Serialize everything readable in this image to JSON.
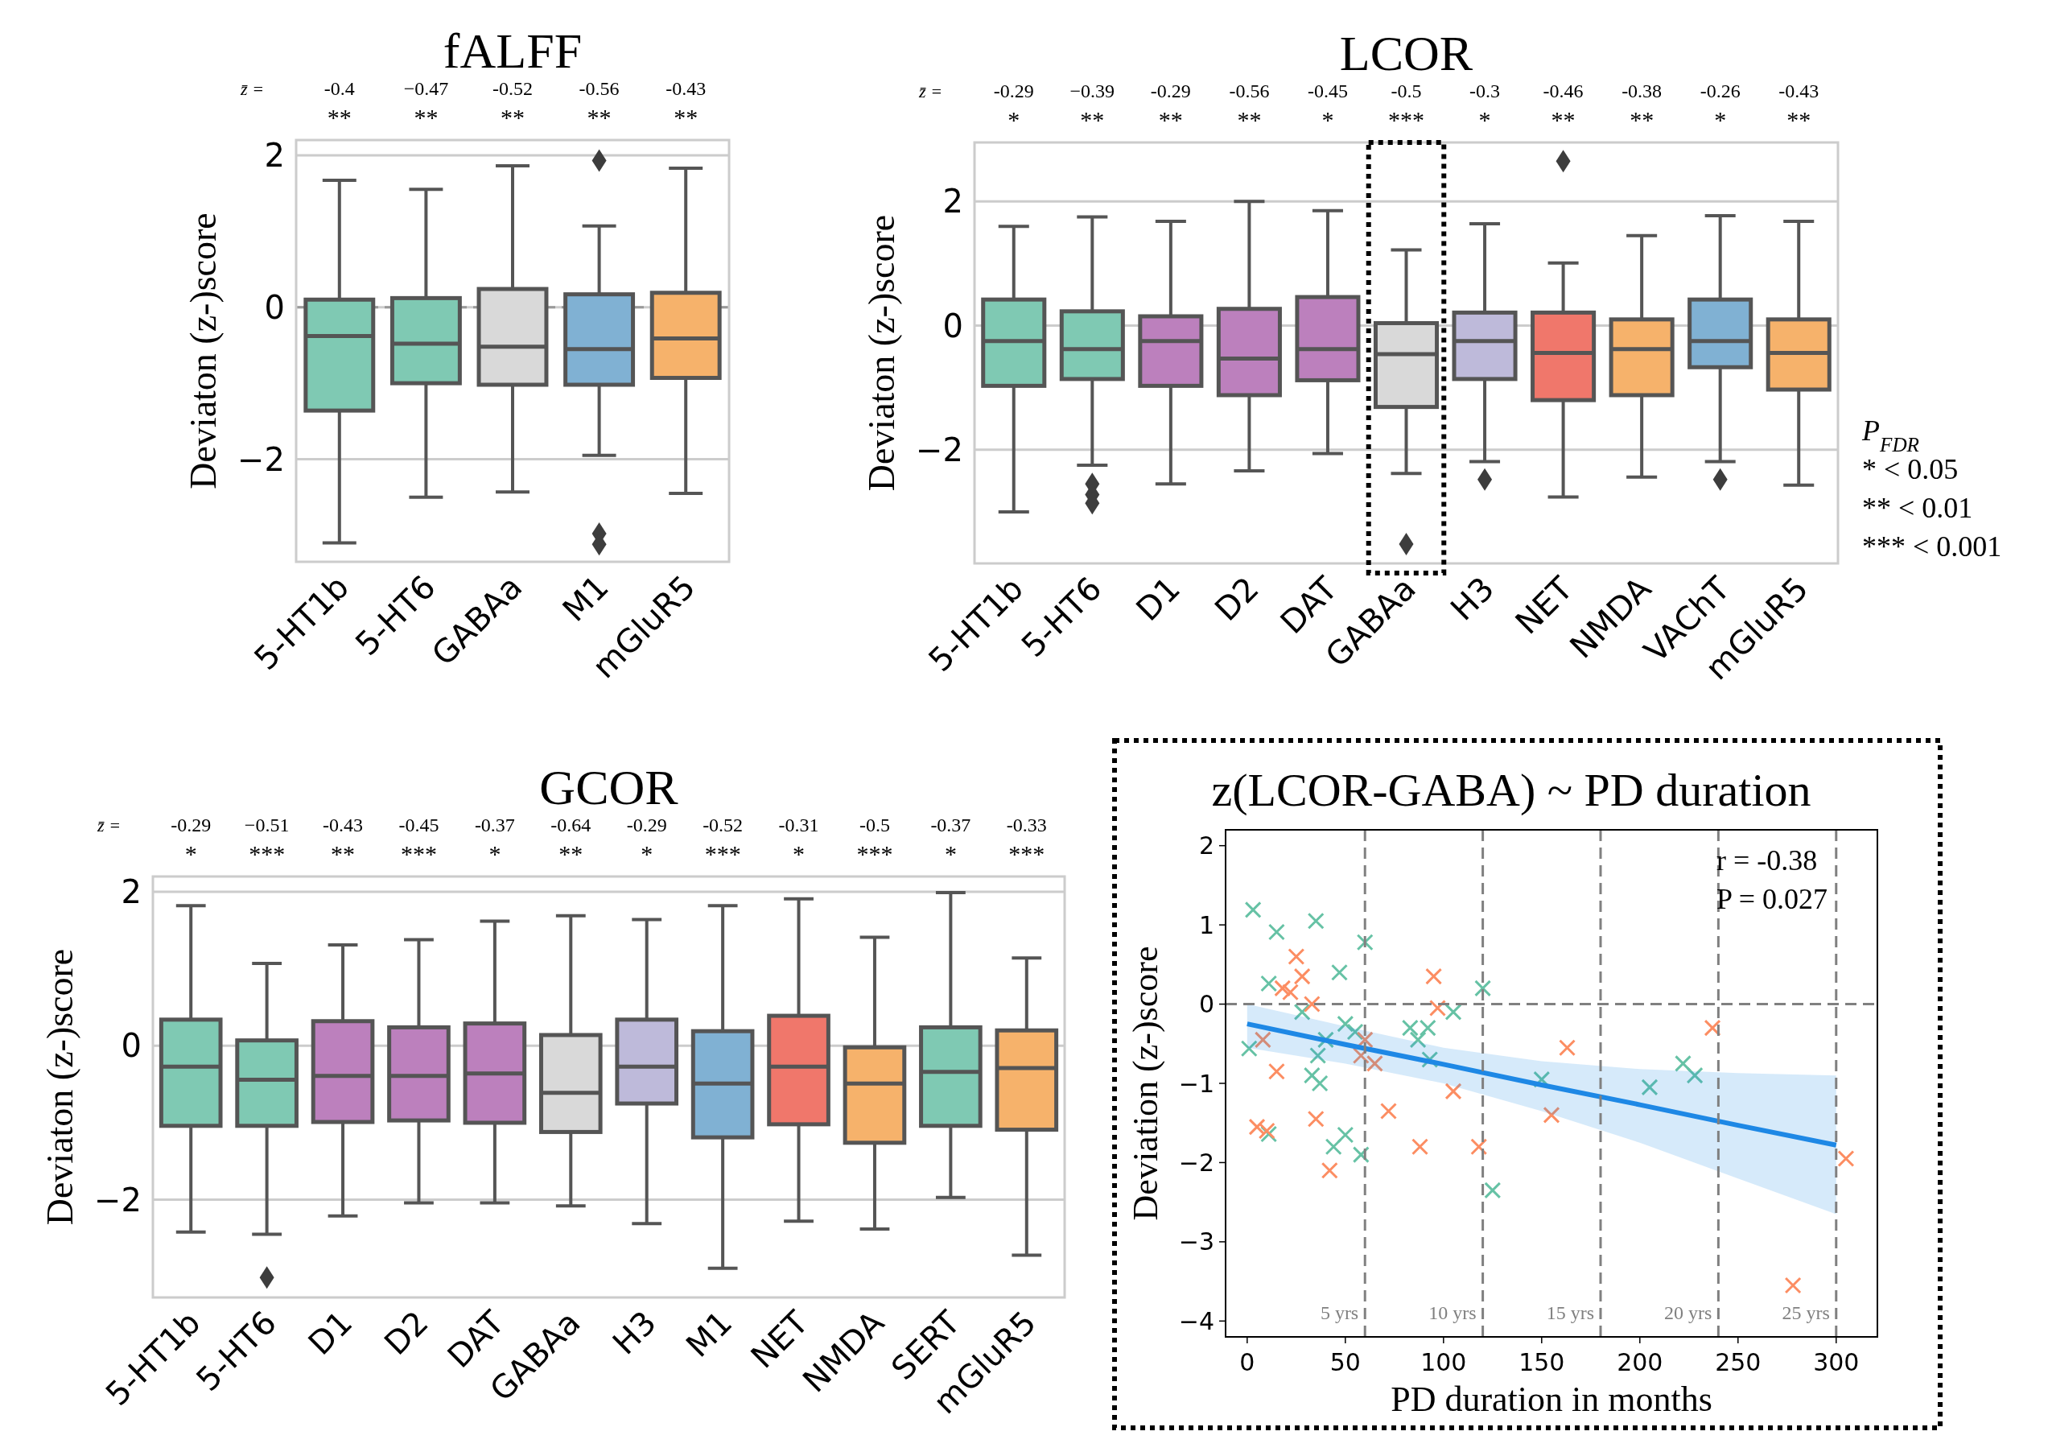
{
  "chart_data": [
    {
      "type": "box",
      "title": "fALFF",
      "ylabel": "Deviaton (z-)score",
      "categories": [
        "5-HT1b",
        "5-HT6",
        "GABAa",
        "M1",
        "mGluR5"
      ],
      "colors": [
        "#7fc9b3",
        "#7fc9b3",
        "#d9d9d9",
        "#80b1d3",
        "#f6b26b"
      ],
      "boxes": [
        {
          "low": -3.1,
          "q1": -1.36,
          "median": -0.38,
          "q3": 0.1,
          "high": 1.67
        },
        {
          "low": -2.5,
          "q1": -1.0,
          "median": -0.48,
          "q3": 0.12,
          "high": 1.55
        },
        {
          "low": -2.43,
          "q1": -1.02,
          "median": -0.52,
          "q3": 0.24,
          "high": 1.86
        },
        {
          "low": -1.95,
          "q1": -1.02,
          "median": -0.55,
          "q3": 0.17,
          "high": 1.07,
          "outliers": [
            1.93,
            -2.98,
            -3.12
          ]
        },
        {
          "low": -2.45,
          "q1": -0.93,
          "median": -0.41,
          "q3": 0.19,
          "high": 1.83
        }
      ],
      "ylim": [
        -3.35,
        2.2
      ],
      "yticks": [
        {
          "value": -2,
          "label": "−2"
        },
        0,
        2
      ],
      "grid": "y",
      "ref_lines": [
        {
          "axis": "y",
          "value": 0,
          "line_style": "dashed",
          "color": "#999999"
        }
      ],
      "annotations": [
        "z̄ =",
        "-0.4",
        "**",
        "−0.47",
        "**",
        "-0.52",
        "**",
        "-0.56",
        "**",
        "-0.43",
        "**"
      ]
    },
    {
      "type": "box",
      "title": "LCOR",
      "ylabel": "Deviaton (z-)score",
      "categories": [
        "5-HT1b",
        "5-HT6",
        "D1",
        "D2",
        "DAT",
        "GABAa",
        "H3",
        "NET",
        "NMDA",
        "VAChT",
        "mGluR5"
      ],
      "colors": [
        "#7fc9b3",
        "#7fc9b3",
        "#bc80bd",
        "#bc80bd",
        "#bc80bd",
        "#d9d9d9",
        "#bebada",
        "#f0776b",
        "#f6b26b",
        "#80b1d3",
        "#f6b26b"
      ],
      "boxes": [
        {
          "low": -3.0,
          "q1": -0.97,
          "median": -0.25,
          "q3": 0.42,
          "high": 1.6
        },
        {
          "low": -2.25,
          "q1": -0.86,
          "median": -0.38,
          "q3": 0.23,
          "high": 1.75,
          "outliers": [
            -2.55,
            -2.72,
            -2.86
          ]
        },
        {
          "low": -2.55,
          "q1": -0.97,
          "median": -0.25,
          "q3": 0.15,
          "high": 1.68
        },
        {
          "low": -2.34,
          "q1": -1.12,
          "median": -0.53,
          "q3": 0.27,
          "high": 2.0
        },
        {
          "low": -2.06,
          "q1": -0.88,
          "median": -0.38,
          "q3": 0.46,
          "high": 1.85
        },
        {
          "low": -2.38,
          "q1": -1.31,
          "median": -0.46,
          "q3": 0.04,
          "high": 1.22,
          "outliers": [
            -3.52
          ]
        },
        {
          "low": -2.19,
          "q1": -0.86,
          "median": -0.25,
          "q3": 0.21,
          "high": 1.64,
          "outliers": [
            -2.48
          ]
        },
        {
          "low": -2.76,
          "q1": -1.2,
          "median": -0.44,
          "q3": 0.21,
          "high": 1.01,
          "outliers": [
            2.65
          ]
        },
        {
          "low": -2.44,
          "q1": -1.12,
          "median": -0.38,
          "q3": 0.1,
          "high": 1.45
        },
        {
          "low": -2.19,
          "q1": -0.67,
          "median": -0.25,
          "q3": 0.42,
          "high": 1.77,
          "outliers": [
            -2.48
          ]
        },
        {
          "low": -2.57,
          "q1": -1.03,
          "median": -0.44,
          "q3": 0.1,
          "high": 1.68
        }
      ],
      "ylim": [
        -3.83,
        2.95
      ],
      "yticks": [
        {
          "value": -2,
          "label": "−2"
        },
        0,
        2
      ],
      "grid": "y",
      "annotations": [
        "z̄ =",
        "-0.29",
        "*",
        "−0.39",
        "**",
        "-0.29",
        "**",
        "-0.56",
        "**",
        "-0.45",
        "*",
        "-0.5",
        "***",
        "-0.3",
        "*",
        "-0.46",
        "**",
        "-0.38",
        "**",
        "-0.26",
        "*",
        "-0.43",
        "**",
        "P$_{FDR}$",
        "* < 0.05",
        "** < 0.01",
        "*** < 0.001"
      ]
    },
    {
      "type": "box",
      "title": "GCOR",
      "ylabel": "Deviaton (z-)score",
      "categories": [
        "5-HT1b",
        "5-HT6",
        "D1",
        "D2",
        "DAT",
        "GABAa",
        "H3",
        "M1",
        "NET",
        "NMDA",
        "SERT",
        "mGluR5"
      ],
      "colors": [
        "#7fc9b3",
        "#7fc9b3",
        "#bc80bd",
        "#bc80bd",
        "#bc80bd",
        "#d9d9d9",
        "#bebada",
        "#80b1d3",
        "#f0776b",
        "#f6b26b",
        "#7fc9b3",
        "#f6b26b"
      ],
      "boxes": [
        {
          "low": -2.42,
          "q1": -1.04,
          "median": -0.27,
          "q3": 0.34,
          "high": 1.82
        },
        {
          "low": -2.45,
          "q1": -1.04,
          "median": -0.44,
          "q3": 0.07,
          "high": 1.07,
          "outliers": [
            -3.01
          ]
        },
        {
          "low": -2.21,
          "q1": -0.99,
          "median": -0.39,
          "q3": 0.32,
          "high": 1.31
        },
        {
          "low": -2.04,
          "q1": -0.97,
          "median": -0.39,
          "q3": 0.24,
          "high": 1.38
        },
        {
          "low": -2.04,
          "q1": -1.0,
          "median": -0.36,
          "q3": 0.29,
          "high": 1.62
        },
        {
          "low": -2.08,
          "q1": -1.12,
          "median": -0.61,
          "q3": 0.14,
          "high": 1.69
        },
        {
          "low": -2.31,
          "q1": -0.75,
          "median": -0.27,
          "q3": 0.34,
          "high": 1.64
        },
        {
          "low": -2.89,
          "q1": -1.19,
          "median": -0.49,
          "q3": 0.19,
          "high": 1.82
        },
        {
          "low": -2.28,
          "q1": -1.02,
          "median": -0.27,
          "q3": 0.39,
          "high": 1.91
        },
        {
          "low": -2.38,
          "q1": -1.26,
          "median": -0.49,
          "q3": -0.02,
          "high": 1.41
        },
        {
          "low": -1.97,
          "q1": -1.04,
          "median": -0.34,
          "q3": 0.24,
          "high": 1.99
        },
        {
          "low": -2.72,
          "q1": -1.09,
          "median": -0.29,
          "q3": 0.2,
          "high": 1.14
        }
      ],
      "ylim": [
        -3.27,
        2.2
      ],
      "yticks": [
        {
          "value": -2,
          "label": "−2"
        },
        0,
        2
      ],
      "grid": "y",
      "annotations": [
        "z̄ =",
        "-0.29",
        "*",
        "−0.51",
        "***",
        "-0.43",
        "**",
        "-0.45",
        "***",
        "-0.37",
        "*",
        "-0.64",
        "**",
        "-0.29",
        "*",
        "-0.52",
        "***",
        "-0.31",
        "*",
        "-0.5",
        "***",
        "-0.37",
        "*",
        "-0.33",
        "***"
      ]
    },
    {
      "type": "scatter",
      "title": "z(LCOR-GABA) ~ PD duration",
      "xlabel": "PD duration in months",
      "ylabel": "Deviation (z-)score",
      "xlim": [
        -11,
        321
      ],
      "xticks": [
        0,
        50,
        100,
        150,
        200,
        250,
        300
      ],
      "ylim": [
        -4.2,
        2.2
      ],
      "yticks": [
        {
          "value": -4,
          "label": "−4"
        },
        {
          "value": -3,
          "label": "−3"
        },
        {
          "value": -2,
          "label": "−2"
        },
        {
          "value": -1,
          "label": "−1"
        },
        0,
        1,
        2
      ],
      "series": [
        {
          "color": "#66c2a5",
          "marker": "cross",
          "x": [
            1,
            3,
            11,
            11,
            15,
            28,
            33,
            35,
            36,
            37,
            40,
            44,
            47,
            50,
            50,
            55,
            58,
            60,
            83,
            87,
            92,
            93,
            105,
            120,
            125,
            150,
            205,
            222,
            228
          ],
          "values": [
            -0.56,
            1.19,
            0.26,
            -1.64,
            0.91,
            -0.1,
            -0.9,
            1.05,
            -0.65,
            -1.0,
            -0.45,
            -1.8,
            0.4,
            -0.25,
            -1.65,
            -0.35,
            -1.9,
            0.78,
            -0.3,
            -0.45,
            -0.3,
            -0.7,
            -0.1,
            0.2,
            -2.35,
            -0.95,
            -1.05,
            -0.75,
            -0.9
          ]
        },
        {
          "color": "#fc8d62",
          "marker": "cross",
          "x": [
            5,
            8,
            10,
            15,
            18,
            22,
            25,
            28,
            33,
            35,
            42,
            58,
            60,
            65,
            72,
            88,
            95,
            97,
            105,
            118,
            155,
            163,
            237,
            278,
            305
          ],
          "values": [
            -1.55,
            -0.45,
            -1.6,
            -0.85,
            0.2,
            0.15,
            0.6,
            0.35,
            0.0,
            -1.45,
            -2.1,
            -0.65,
            -0.45,
            -0.75,
            -1.35,
            -1.8,
            0.35,
            -0.05,
            -1.1,
            -1.8,
            -1.4,
            -0.55,
            -0.3,
            -3.55,
            -1.95
          ]
        },
        {
          "type": "line",
          "color": "#1e88e5",
          "line_style": "solid",
          "x": [
            0,
            50,
            100,
            150,
            200,
            250,
            300
          ],
          "values": [
            -0.25,
            -0.51,
            -0.76,
            -1.02,
            -1.27,
            -1.53,
            -1.78
          ],
          "lower": [
            -0.55,
            -0.75,
            -1.0,
            -1.35,
            -1.75,
            -2.2,
            -2.65
          ],
          "upper": [
            0.0,
            -0.28,
            -0.55,
            -0.72,
            -0.82,
            -0.87,
            -0.9
          ]
        }
      ],
      "ref_lines": [
        {
          "axis": "y",
          "value": 0,
          "line_style": "dashed",
          "color": "#808080"
        },
        {
          "axis": "x",
          "value": 60,
          "label": "5 yrs",
          "line_style": "dashed",
          "color": "#808080"
        },
        {
          "axis": "x",
          "value": 120,
          "label": "10 yrs",
          "line_style": "dashed",
          "color": "#808080"
        },
        {
          "axis": "x",
          "value": 180,
          "label": "15 yrs",
          "line_style": "dashed",
          "color": "#808080"
        },
        {
          "axis": "x",
          "value": 240,
          "label": "20 yrs",
          "line_style": "dashed",
          "color": "#808080"
        },
        {
          "axis": "x",
          "value": 300,
          "label": "25 yrs",
          "line_style": "dashed",
          "color": "#808080"
        }
      ],
      "annotations": [
        "r = -0.38",
        "P = 0.027"
      ]
    }
  ]
}
